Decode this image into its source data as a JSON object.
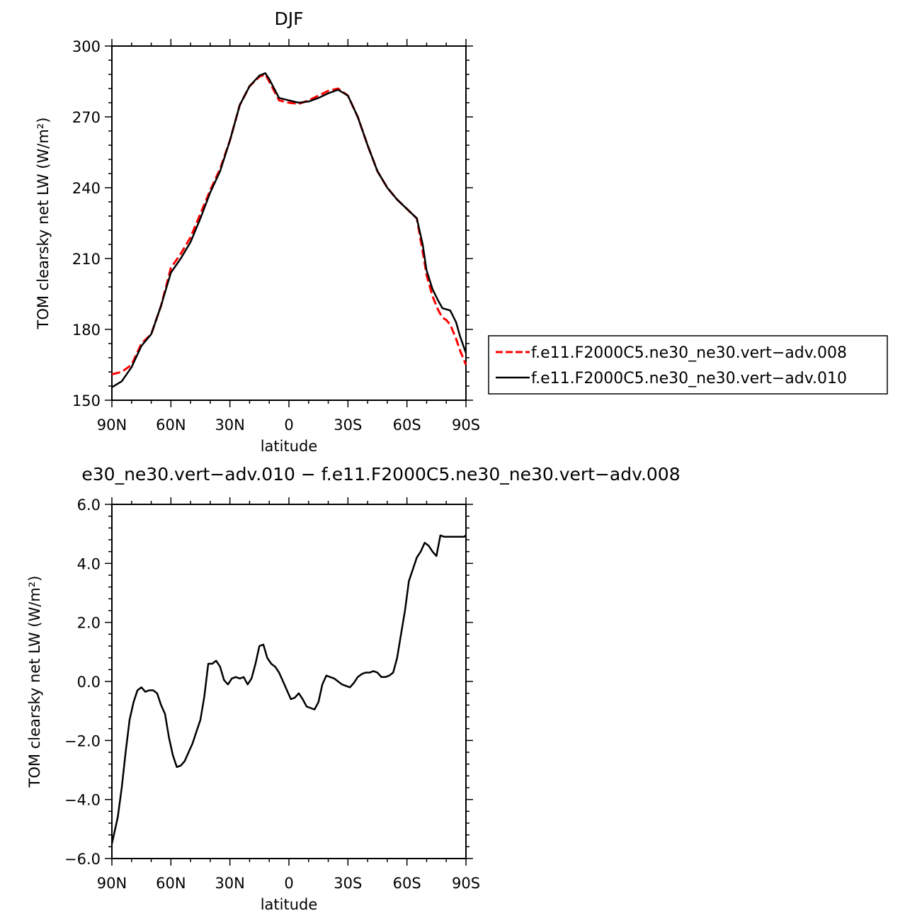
{
  "chart_data": [
    {
      "type": "line",
      "title": "DJF",
      "xlabel": "latitude",
      "ylabel": "TOM clearsky net LW (W/m²)",
      "x_tick_labels": [
        "90N",
        "60N",
        "30N",
        "0",
        "30S",
        "60S",
        "90S"
      ],
      "x_tick_values": [
        90,
        60,
        30,
        0,
        -30,
        -60,
        -90
      ],
      "y_tick_labels": [
        "150",
        "180",
        "210",
        "240",
        "270",
        "300"
      ],
      "y_tick_values": [
        150,
        180,
        210,
        240,
        270,
        300
      ],
      "xlim": [
        90,
        -90
      ],
      "ylim": [
        150,
        300
      ],
      "grid": false,
      "legend_position": "right",
      "x": [
        90,
        85,
        80,
        75,
        70,
        65,
        60,
        55,
        50,
        45,
        40,
        35,
        30,
        25,
        20,
        15,
        12,
        10,
        5,
        0,
        -5,
        -10,
        -15,
        -20,
        -25,
        -30,
        -35,
        -40,
        -45,
        -50,
        -55,
        -60,
        -65,
        -68,
        -70,
        -73,
        -76,
        -78,
        -80,
        -82,
        -85,
        -87,
        -90
      ],
      "series": [
        {
          "name": "f.e11.F2000C5.ne30_ne30.vert−adv.008",
          "color": "#ff0000",
          "dash": "dashed",
          "values": [
            161,
            162,
            165,
            174,
            178,
            190,
            206,
            212,
            219,
            229,
            239,
            248,
            260,
            275,
            283,
            287,
            288,
            285,
            277,
            276,
            275.5,
            277,
            279,
            281,
            282,
            279,
            270,
            258,
            247,
            240,
            235,
            231,
            227,
            213,
            203,
            194,
            188,
            185,
            184,
            182,
            176,
            171,
            165
          ]
        },
        {
          "name": "f.e11.F2000C5.ne30_ne30.vert−adv.010",
          "color": "#000000",
          "dash": "solid",
          "values": [
            155.5,
            158,
            164,
            173,
            178,
            190,
            204,
            210,
            217,
            227,
            238,
            247,
            260,
            275,
            283,
            287.5,
            288.5,
            286,
            278,
            277,
            276,
            276.5,
            278,
            280,
            281.5,
            279,
            270,
            258,
            247,
            240,
            235,
            231,
            227,
            216,
            205,
            197,
            192,
            189,
            188.5,
            188,
            183,
            177,
            170
          ]
        }
      ]
    },
    {
      "type": "line",
      "title": "e30_ne30.vert−adv.010 − f.e11.F2000C5.ne30_ne30.vert−adv.008",
      "xlabel": "latitude",
      "ylabel": "TOM clearsky net LW (W/m²)",
      "x_tick_labels": [
        "90N",
        "60N",
        "30N",
        "0",
        "30S",
        "60S",
        "90S"
      ],
      "x_tick_values": [
        90,
        60,
        30,
        0,
        -30,
        -60,
        -90
      ],
      "y_tick_labels": [
        "−6.0",
        "−4.0",
        "−2.0",
        "0.0",
        "2.0",
        "4.0",
        "6.0"
      ],
      "y_tick_values": [
        -6,
        -4,
        -2,
        0,
        2,
        4,
        6
      ],
      "xlim": [
        90,
        -90
      ],
      "ylim": [
        -6,
        6
      ],
      "grid": false,
      "x": [
        90,
        87,
        85,
        83,
        81,
        79,
        77,
        75,
        73,
        71,
        69,
        67,
        65,
        63,
        61,
        59,
        57,
        55,
        53,
        51,
        49,
        47,
        45,
        43,
        41,
        39,
        37,
        35,
        33,
        31,
        29,
        27,
        25,
        23,
        21,
        19,
        17,
        15,
        13,
        11,
        9,
        7,
        5,
        3,
        1,
        -1,
        -3,
        -5,
        -7,
        -9,
        -11,
        -13,
        -15,
        -17,
        -19,
        -21,
        -23,
        -25,
        -27,
        -29,
        -31,
        -33,
        -35,
        -37,
        -39,
        -41,
        -43,
        -45,
        -47,
        -49,
        -51,
        -53,
        -55,
        -57,
        -59,
        -61,
        -63,
        -65,
        -67,
        -69,
        -71,
        -73,
        -75,
        -77,
        -79,
        -81,
        -83,
        -85,
        -87,
        -89,
        -90
      ],
      "series": [
        {
          "name": "",
          "color": "#000000",
          "values": [
            -5.5,
            -4.6,
            -3.6,
            -2.4,
            -1.3,
            -0.7,
            -0.3,
            -0.2,
            -0.35,
            -0.3,
            -0.3,
            -0.4,
            -0.8,
            -1.1,
            -1.9,
            -2.5,
            -2.9,
            -2.85,
            -2.7,
            -2.4,
            -2.1,
            -1.7,
            -1.3,
            -0.5,
            0.6,
            0.6,
            0.7,
            0.5,
            0.05,
            -0.1,
            0.1,
            0.15,
            0.1,
            0.15,
            -0.1,
            0.1,
            0.6,
            1.2,
            1.25,
            0.8,
            0.6,
            0.5,
            0.3,
            0.0,
            -0.3,
            -0.6,
            -0.55,
            -0.4,
            -0.6,
            -0.85,
            -0.9,
            -0.95,
            -0.7,
            -0.1,
            0.2,
            0.15,
            0.1,
            0.0,
            -0.1,
            -0.15,
            -0.2,
            -0.05,
            0.15,
            0.25,
            0.3,
            0.3,
            0.35,
            0.3,
            0.15,
            0.15,
            0.2,
            0.3,
            0.8,
            1.6,
            2.4,
            3.4,
            3.8,
            4.2,
            4.4,
            4.7,
            4.6,
            4.4,
            4.25,
            4.95,
            4.9,
            4.9,
            4.9,
            4.9,
            4.9,
            4.9,
            4.95
          ]
        }
      ]
    }
  ]
}
